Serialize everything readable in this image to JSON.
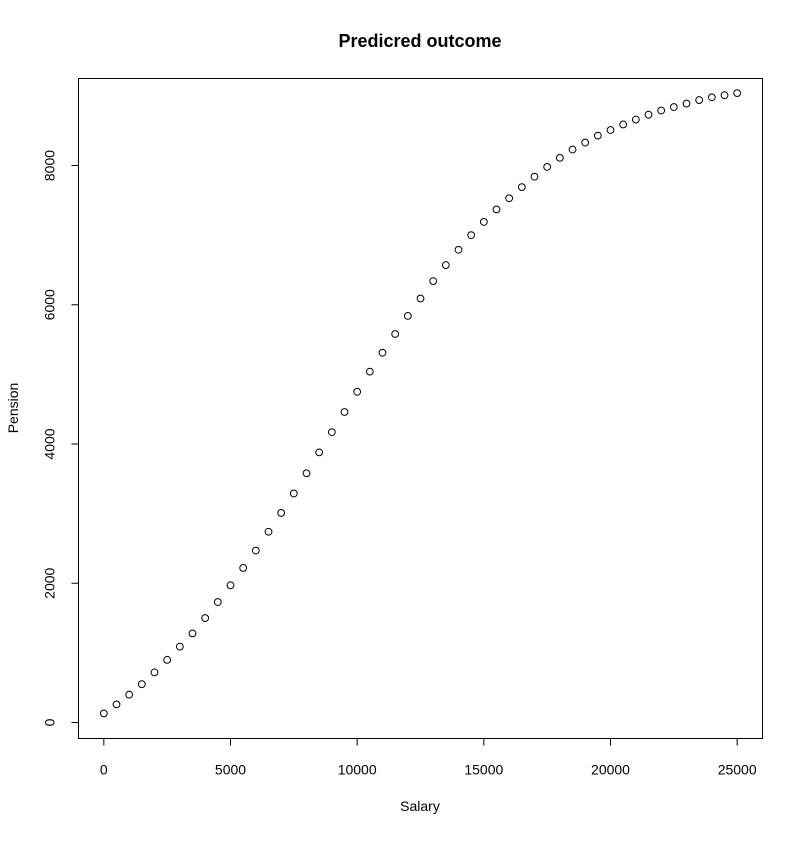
{
  "chart_data": {
    "type": "scatter",
    "title": "Predicred outcome",
    "xlabel": "Salary",
    "ylabel": "Pension",
    "xlim": [
      -1000,
      26000
    ],
    "ylim": [
      -230,
      9250
    ],
    "x_ticks": [
      0,
      5000,
      10000,
      15000,
      20000,
      25000
    ],
    "y_ticks": [
      0,
      2000,
      4000,
      6000,
      8000
    ],
    "x_tick_labels": [
      "0",
      "5000",
      "10000",
      "15000",
      "20000",
      "25000"
    ],
    "y_tick_labels": [
      "0",
      "2000",
      "4000",
      "6000",
      "8000"
    ],
    "grid": false,
    "legend": "none",
    "marker": "open-circle",
    "color": "#000000",
    "x": [
      0,
      500,
      1000,
      1500,
      2000,
      2500,
      3000,
      3500,
      4000,
      4500,
      5000,
      5500,
      6000,
      6500,
      7000,
      7500,
      8000,
      8500,
      9000,
      9500,
      10000,
      10500,
      11000,
      11500,
      12000,
      12500,
      13000,
      13500,
      14000,
      14500,
      15000,
      15500,
      16000,
      16500,
      17000,
      17500,
      18000,
      18500,
      19000,
      19500,
      20000,
      20500,
      21000,
      21500,
      22000,
      22500,
      23000,
      23500,
      24000,
      24500,
      25000
    ],
    "y": [
      130,
      260,
      400,
      550,
      720,
      900,
      1090,
      1280,
      1500,
      1730,
      1970,
      2220,
      2470,
      2740,
      3010,
      3290,
      3580,
      3880,
      4170,
      4460,
      4750,
      5040,
      5310,
      5580,
      5840,
      6090,
      6340,
      6570,
      6790,
      7000,
      7190,
      7370,
      7530,
      7690,
      7840,
      7980,
      8110,
      8230,
      8330,
      8430,
      8510,
      8590,
      8660,
      8730,
      8790,
      8840,
      8890,
      8940,
      8980,
      9010,
      9040
    ]
  }
}
